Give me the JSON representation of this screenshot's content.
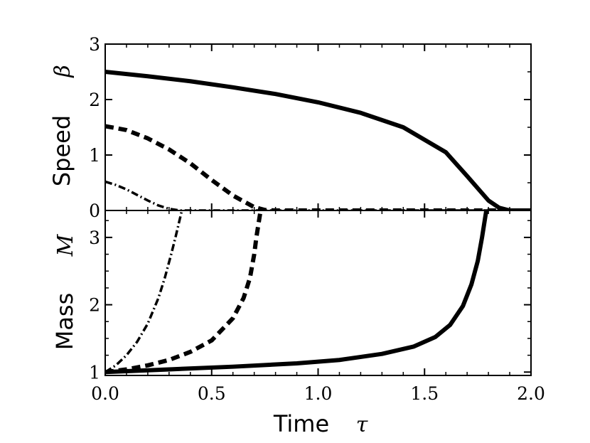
{
  "chart_data": [
    {
      "panel": "top",
      "type": "line",
      "ylabel": "Speed",
      "ylabel_symbol": "β",
      "xlim": [
        0,
        2
      ],
      "ylim": [
        0,
        3
      ],
      "yticks": [
        "0",
        "1",
        "2",
        "3"
      ],
      "series": [
        {
          "style": "solid",
          "x": [
            0,
            0.2,
            0.4,
            0.6,
            0.8,
            1.0,
            1.2,
            1.4,
            1.6,
            1.7,
            1.75,
            1.8,
            1.85,
            1.9,
            2.0
          ],
          "y": [
            2.5,
            2.42,
            2.33,
            2.22,
            2.1,
            1.95,
            1.76,
            1.5,
            1.05,
            0.62,
            0.4,
            0.18,
            0.05,
            0.0,
            0.0
          ]
        },
        {
          "style": "dashed",
          "x": [
            0,
            0.1,
            0.2,
            0.3,
            0.4,
            0.5,
            0.6,
            0.7,
            0.75,
            0.8,
            2.0
          ],
          "y": [
            1.52,
            1.45,
            1.3,
            1.1,
            0.85,
            0.55,
            0.27,
            0.06,
            0.01,
            0.0,
            0.0
          ]
        },
        {
          "style": "dashdot",
          "x": [
            0,
            0.05,
            0.1,
            0.15,
            0.2,
            0.25,
            0.3,
            0.35,
            0.4,
            2.0
          ],
          "y": [
            0.52,
            0.46,
            0.38,
            0.28,
            0.18,
            0.09,
            0.03,
            0.0,
            0.0,
            0.0
          ]
        }
      ]
    },
    {
      "panel": "bottom",
      "type": "line",
      "xlabel": "Time",
      "xlabel_symbol": "τ",
      "ylabel": "Mass",
      "ylabel_symbol": "M",
      "xlim": [
        0,
        2
      ],
      "ylim": [
        0.95,
        3.4
      ],
      "xticks": [
        "0.0",
        "0.5",
        "1.0",
        "1.5",
        "2.0"
      ],
      "yticks": [
        "1",
        "2",
        "3"
      ],
      "series": [
        {
          "style": "solid",
          "x": [
            0,
            0.3,
            0.6,
            0.9,
            1.1,
            1.3,
            1.45,
            1.55,
            1.62,
            1.68,
            1.72,
            1.75,
            1.77,
            1.78,
            1.79
          ],
          "y": [
            1.0,
            1.04,
            1.08,
            1.13,
            1.18,
            1.27,
            1.38,
            1.52,
            1.7,
            1.98,
            2.3,
            2.65,
            3.0,
            3.2,
            3.4
          ]
        },
        {
          "style": "dashed",
          "x": [
            0,
            0.1,
            0.2,
            0.3,
            0.4,
            0.5,
            0.6,
            0.65,
            0.68,
            0.7,
            0.71,
            0.72,
            0.73
          ],
          "y": [
            1.0,
            1.04,
            1.1,
            1.18,
            1.3,
            1.47,
            1.8,
            2.1,
            2.4,
            2.75,
            3.0,
            3.2,
            3.4
          ]
        },
        {
          "style": "dashdot",
          "x": [
            0,
            0.05,
            0.1,
            0.15,
            0.2,
            0.25,
            0.28,
            0.31,
            0.33,
            0.345,
            0.36
          ],
          "y": [
            1.0,
            1.1,
            1.25,
            1.45,
            1.72,
            2.1,
            2.4,
            2.75,
            3.0,
            3.2,
            3.4
          ]
        }
      ]
    }
  ]
}
